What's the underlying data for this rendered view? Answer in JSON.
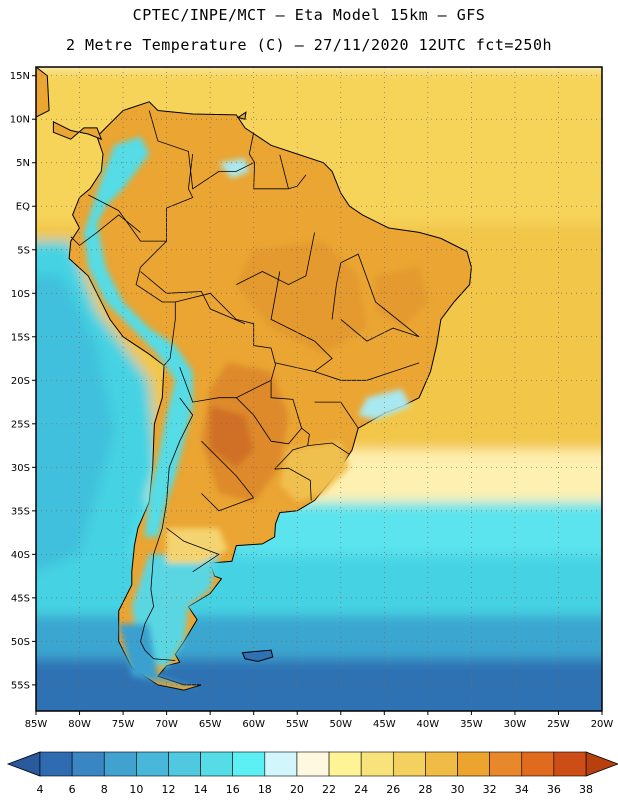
{
  "header": {
    "line1": "CPTEC/INPE/MCT –  Eta Model 15km – GFS",
    "line2": "2 Metre Temperature (C) – 27/11/2020 12UTC fct=250h"
  },
  "map": {
    "lon_range": [
      -85,
      -20
    ],
    "lat_range": [
      -58,
      16
    ],
    "lat_ticks": [
      {
        "lat": 15,
        "label": "15N"
      },
      {
        "lat": 10,
        "label": "10N"
      },
      {
        "lat": 5,
        "label": "5N"
      },
      {
        "lat": 0,
        "label": "EQ"
      },
      {
        "lat": -5,
        "label": "5S"
      },
      {
        "lat": -10,
        "label": "10S"
      },
      {
        "lat": -15,
        "label": "15S"
      },
      {
        "lat": -20,
        "label": "20S"
      },
      {
        "lat": -25,
        "label": "25S"
      },
      {
        "lat": -30,
        "label": "30S"
      },
      {
        "lat": -35,
        "label": "35S"
      },
      {
        "lat": -40,
        "label": "40S"
      },
      {
        "lat": -45,
        "label": "45S"
      },
      {
        "lat": -50,
        "label": "50S"
      },
      {
        "lat": -55,
        "label": "55S"
      }
    ],
    "lon_ticks": [
      {
        "lon": -85,
        "label": "85W"
      },
      {
        "lon": -80,
        "label": "80W"
      },
      {
        "lon": -75,
        "label": "75W"
      },
      {
        "lon": -70,
        "label": "70W"
      },
      {
        "lon": -65,
        "label": "65W"
      },
      {
        "lon": -60,
        "label": "60W"
      },
      {
        "lon": -55,
        "label": "55W"
      },
      {
        "lon": -50,
        "label": "50W"
      },
      {
        "lon": -45,
        "label": "45W"
      },
      {
        "lon": -40,
        "label": "40W"
      },
      {
        "lon": -35,
        "label": "35W"
      },
      {
        "lon": -30,
        "label": "30W"
      },
      {
        "lon": -25,
        "label": "25W"
      },
      {
        "lon": -20,
        "label": "20W"
      }
    ],
    "colors": {
      "ocean_north": "#f6d45a",
      "ocean_trop": "#f2c64a",
      "land_warm": "#eaa532",
      "land_hot": "#de8a2a",
      "land_hotter": "#d07028",
      "andes_cool": "#55dce6",
      "ocean_cold": "#2f72b4",
      "ocean_mid": "#3aa6d0",
      "ocean_cyan": "#45d3e3"
    }
  },
  "colorbar": {
    "labels": [
      "4",
      "6",
      "8",
      "10",
      "12",
      "14",
      "16",
      "18",
      "20",
      "22",
      "24",
      "26",
      "28",
      "30",
      "32",
      "34",
      "36",
      "38"
    ],
    "colors": [
      "#2f6bb0",
      "#3a86c2",
      "#41a2cf",
      "#49b7d9",
      "#4fc8e0",
      "#55dce6",
      "#5cf0f4",
      "#d2f6fb",
      "#fff8e0",
      "#fef496",
      "#f8e27a",
      "#f4d05e",
      "#f0bc46",
      "#eca42e",
      "#e8882a",
      "#e06a1e",
      "#cc4e16"
    ],
    "left_color": "#2a5a9e",
    "right_color": "#b8400e"
  }
}
